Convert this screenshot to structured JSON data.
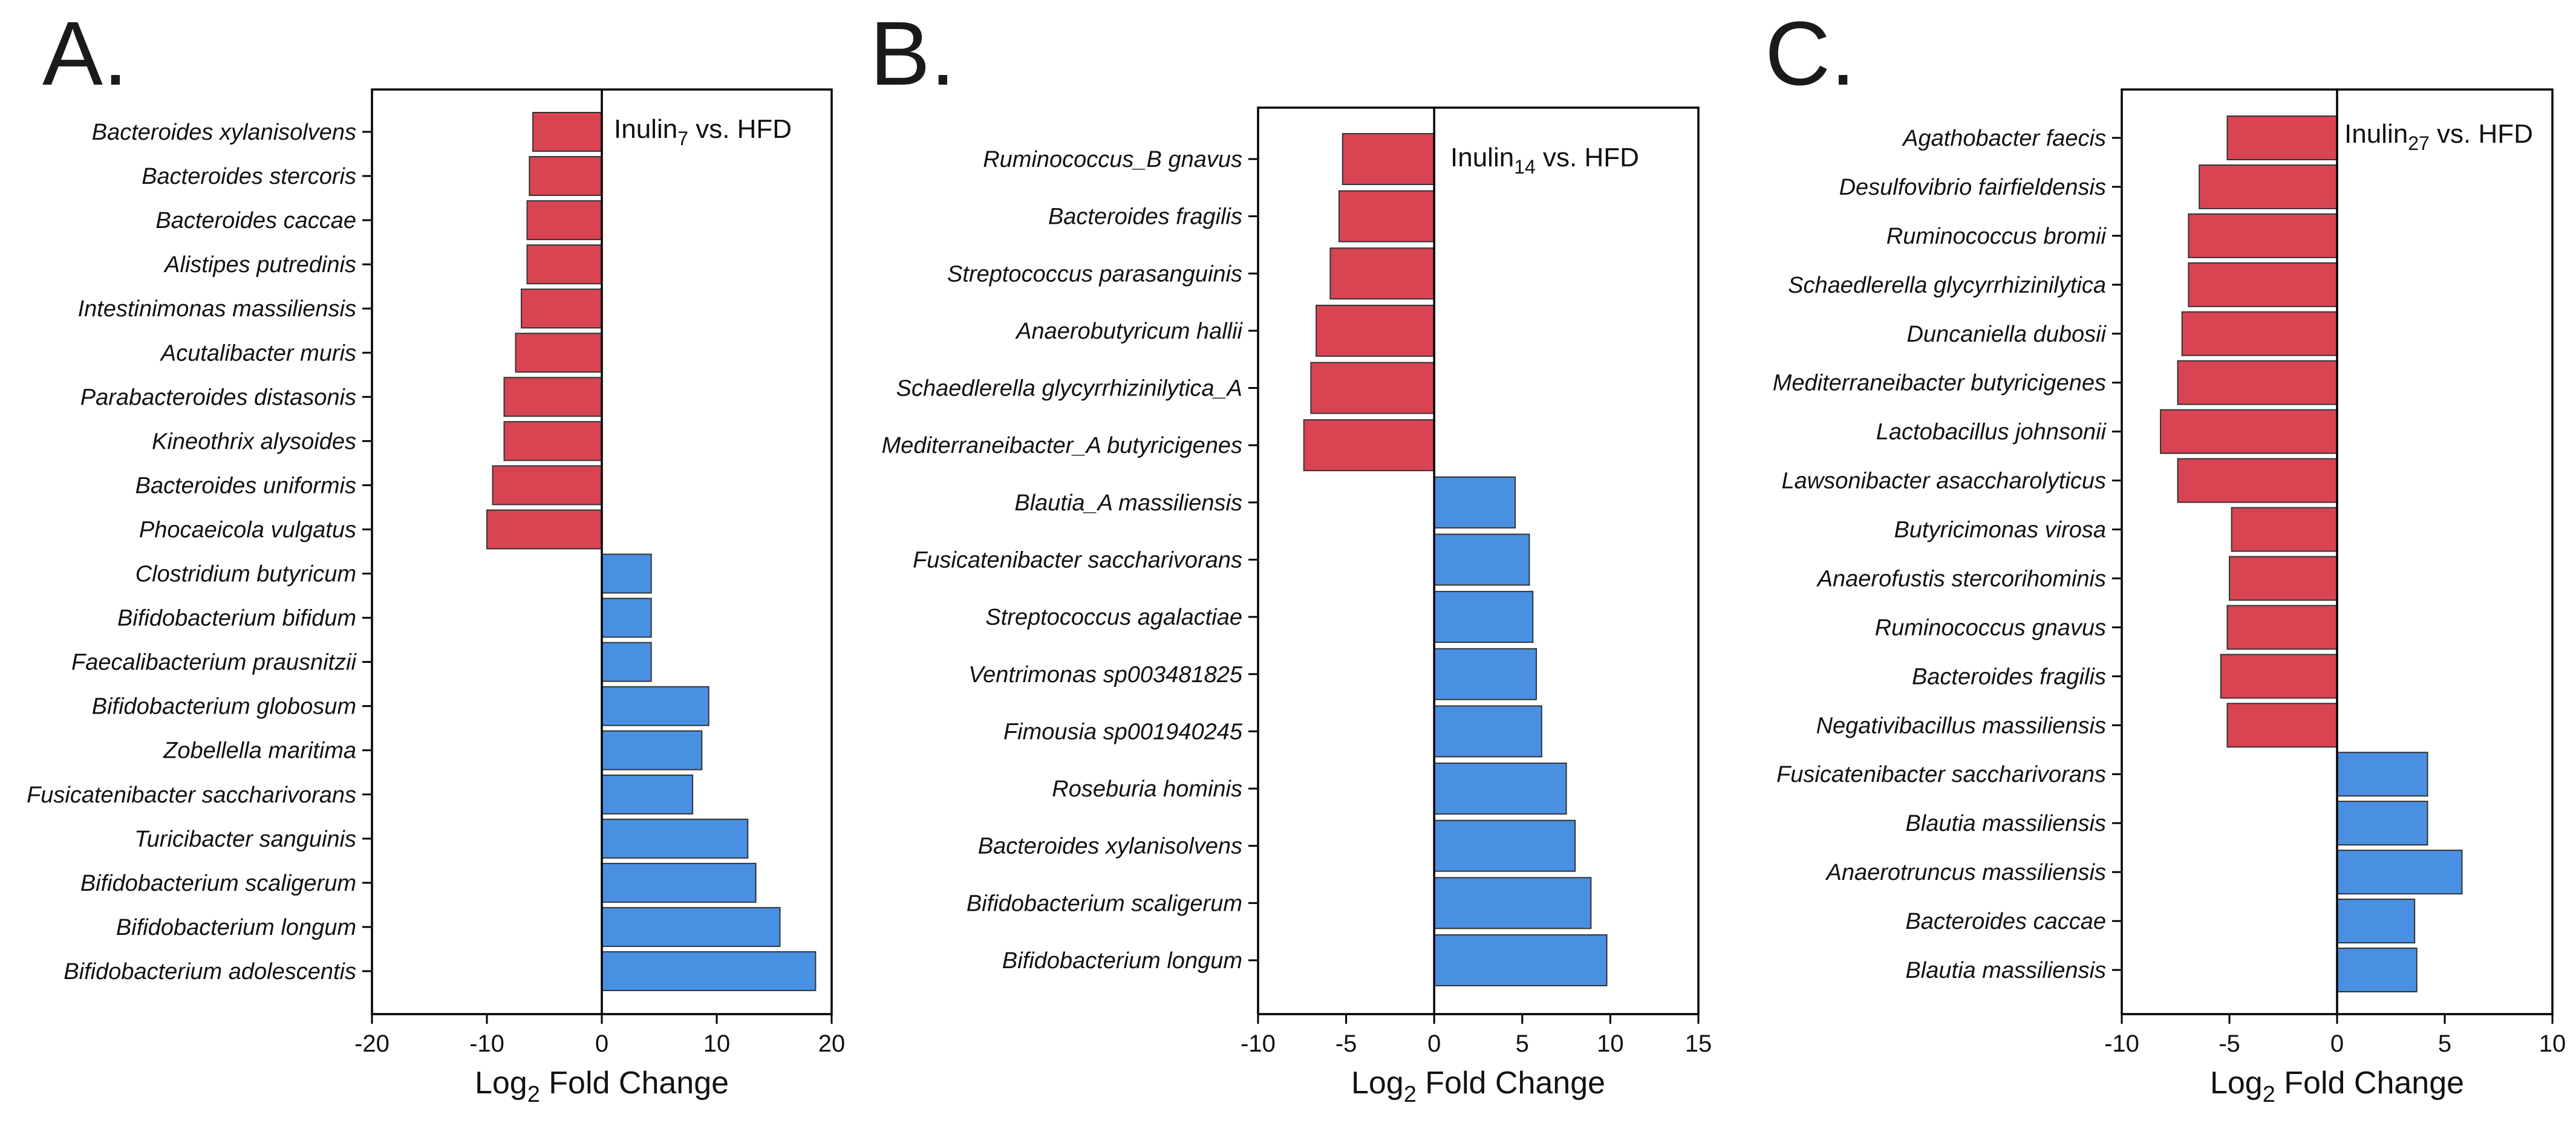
{
  "colors": {
    "negative": "#D94452",
    "positive": "#4A90E2"
  },
  "chart_data": [
    {
      "type": "bar",
      "orientation": "horizontal",
      "panel": "A.",
      "label_main": "Inulin",
      "label_sub": "7",
      "label_rest": " vs. HFD",
      "xlabel_main": "Log",
      "xlabel_sub": "2",
      "xlabel_rest": " Fold Change",
      "xlim": [
        -20,
        20
      ],
      "xticks": [
        -20,
        -10,
        0,
        10,
        20
      ],
      "categories": [
        "Bacteroides xylanisolvens",
        "Bacteroides stercoris",
        "Bacteroides caccae",
        "Alistipes putredinis",
        "Intestinimonas massiliensis",
        "Acutalibacter muris",
        "Parabacteroides distasonis",
        "Kineothrix alysoides",
        "Bacteroides uniformis",
        "Phocaeicola vulgatus",
        "Clostridium butyricum",
        "Bifidobacterium bifidum",
        "Faecalibacterium prausnitzii",
        "Bifidobacterium globosum",
        "Zobellella maritima",
        "Fusicatenibacter saccharivorans",
        "Turicibacter sanguinis",
        "Bifidobacterium scaligerum",
        "Bifidobacterium longum",
        "Bifidobacterium adolescentis"
      ],
      "values": [
        -6.0,
        -6.3,
        -6.5,
        -6.5,
        -7.0,
        -7.5,
        -8.5,
        -8.5,
        -9.5,
        -10.0,
        4.3,
        4.3,
        4.3,
        9.3,
        8.7,
        7.9,
        12.7,
        13.4,
        15.5,
        18.6
      ]
    },
    {
      "type": "bar",
      "orientation": "horizontal",
      "panel": "B.",
      "label_main": "Inulin",
      "label_sub": "14",
      "label_rest": " vs. HFD",
      "xlabel_main": "Log",
      "xlabel_sub": "2",
      "xlabel_rest": " Fold Change",
      "xlim": [
        -10,
        15
      ],
      "xticks": [
        -10,
        -5,
        0,
        5,
        10,
        15
      ],
      "categories": [
        "Ruminococcus_B gnavus",
        "Bacteroides fragilis",
        "Streptococcus parasanguinis",
        "Anaerobutyricum hallii",
        "Schaedlerella glycyrrhizinilytica_A",
        "Mediterraneibacter_A butyricigenes",
        "Blautia_A massiliensis",
        "Fusicatenibacter saccharivorans",
        "Streptococcus agalactiae",
        "Ventrimonas sp003481825",
        "Fimousia sp001940245",
        "Roseburia hominis",
        "Bacteroides xylanisolvens",
        "Bifidobacterium scaligerum",
        "Bifidobacterium longum"
      ],
      "values": [
        -5.2,
        -5.4,
        -5.9,
        -6.7,
        -7.0,
        -7.4,
        4.6,
        5.4,
        5.6,
        5.8,
        6.1,
        7.5,
        8.0,
        8.9,
        9.8
      ]
    },
    {
      "type": "bar",
      "orientation": "horizontal",
      "panel": "C.",
      "label_main": "Inulin",
      "label_sub": "27",
      "label_rest": " vs. HFD",
      "xlabel_main": "Log",
      "xlabel_sub": "2",
      "xlabel_rest": " Fold Change",
      "xlim": [
        -10,
        10
      ],
      "xticks": [
        -10,
        -5,
        0,
        5,
        10
      ],
      "categories": [
        "Agathobacter faecis",
        "Desulfovibrio fairfieldensis",
        "Ruminococcus bromii",
        "Schaedlerella glycyrrhizinilytica",
        "Duncaniella dubosii",
        "Mediterraneibacter butyricigenes",
        "Lactobacillus johnsonii",
        "Lawsonibacter asaccharolyticus",
        "Butyricimonas virosa",
        "Anaerofustis stercorihominis",
        "Ruminococcus gnavus",
        "Bacteroides fragilis",
        "Negativibacillus massiliensis",
        "Fusicatenibacter saccharivorans",
        "Blautia massiliensis",
        "Anaerotruncus massiliensis",
        "Bacteroides caccae",
        "Blautia massiliensis"
      ],
      "values": [
        -5.1,
        -6.4,
        -6.9,
        -6.9,
        -7.2,
        -7.4,
        -8.2,
        -7.4,
        -4.9,
        -5.0,
        -5.1,
        -5.4,
        -5.1,
        4.2,
        4.2,
        5.8,
        3.6,
        3.7
      ]
    }
  ]
}
